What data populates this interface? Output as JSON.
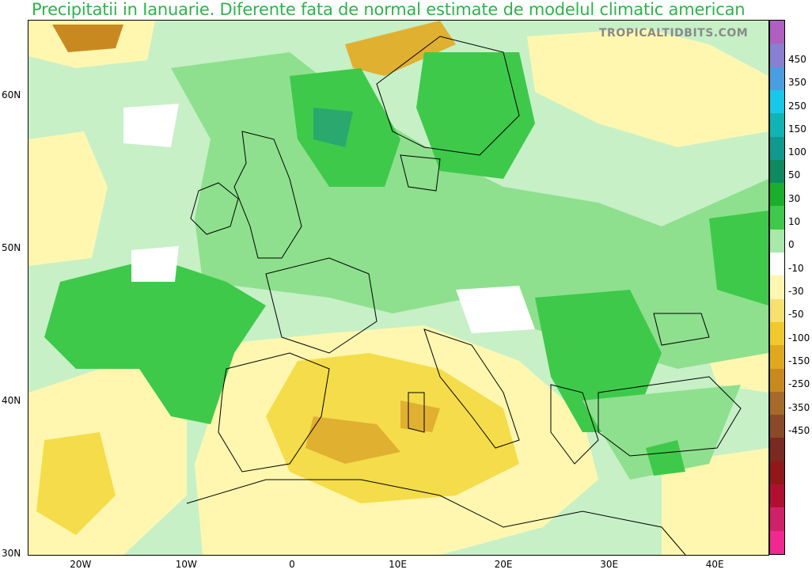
{
  "title": "Precipitatii in Ianuarie. Diferente fata de normal estimate de modelul climatic american",
  "watermark": "TROPICALTIDBITS.COM",
  "map": {
    "lat_ticks": [
      {
        "label": "60N",
        "value": 60
      },
      {
        "label": "50N",
        "value": 50
      },
      {
        "label": "40N",
        "value": 40
      },
      {
        "label": "30N",
        "value": 30
      }
    ],
    "lon_ticks": [
      {
        "label": "20W",
        "value": -20
      },
      {
        "label": "10W",
        "value": -10
      },
      {
        "label": "0",
        "value": 0
      },
      {
        "label": "10E",
        "value": 10
      },
      {
        "label": "20E",
        "value": 20
      },
      {
        "label": "30E",
        "value": 30
      },
      {
        "label": "40E",
        "value": 40
      }
    ],
    "extent": {
      "lon_min": -25,
      "lon_max": 45,
      "lat_min": 30,
      "lat_max": 65
    },
    "colors": {
      "wet_light": "#c7f0c7",
      "wet_mid": "#8ee08e",
      "wet_strong": "#3ec94a",
      "wet_max": "#2aa86e",
      "dry_light": "#fff7b0",
      "dry_mid": "#f5dc4a",
      "dry_strong": "#e0b030",
      "dry_max": "#c88a20"
    }
  },
  "colorbar": {
    "labels": [
      "450",
      "350",
      "250",
      "150",
      "100",
      "50",
      "30",
      "10",
      "0",
      "-10",
      "-30",
      "-50",
      "-100",
      "-150",
      "-250",
      "-350",
      "-450"
    ],
    "colors": [
      "#b060c0",
      "#8a7fd0",
      "#4a9ee0",
      "#18c8e8",
      "#10b4b4",
      "#109a8e",
      "#0e8a60",
      "#18b02a",
      "#3ec94a",
      "#a8e8a8",
      "#ffffff",
      "#fff7b0",
      "#f5e070",
      "#f0c830",
      "#e0a820",
      "#c88a20",
      "#a86a28",
      "#8a4a28",
      "#7a2a20",
      "#901818",
      "#b01030",
      "#d0206a",
      "#f02890"
    ]
  }
}
